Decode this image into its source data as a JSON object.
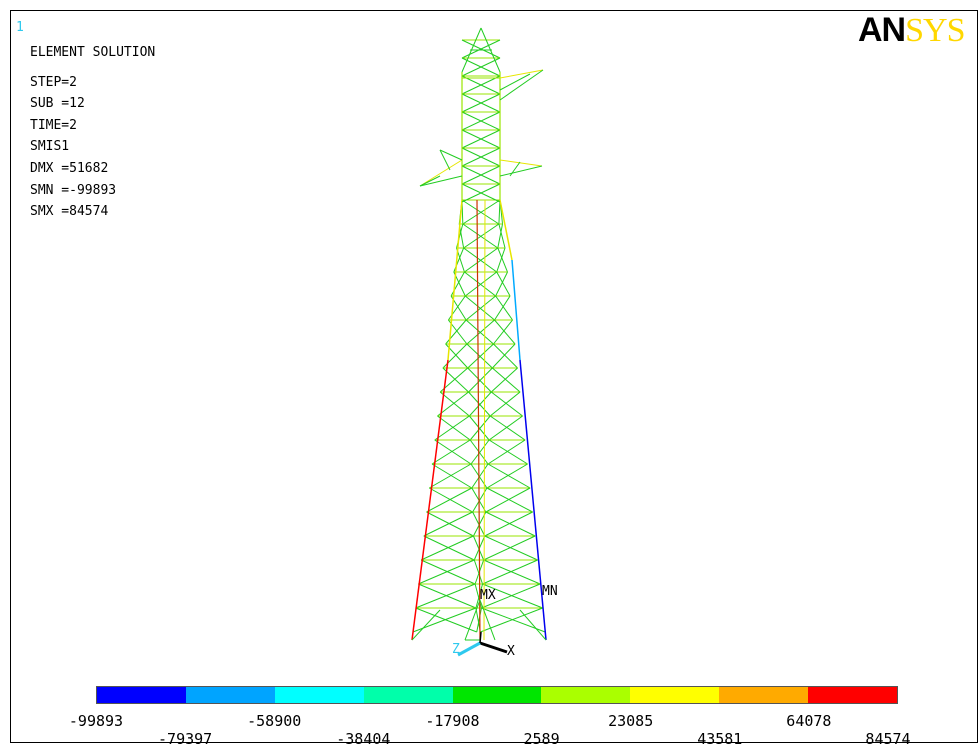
{
  "window_number": "1",
  "logo": {
    "part1": "AN",
    "part2": "SYS"
  },
  "info": {
    "title": "ELEMENT SOLUTION",
    "step": "STEP=2",
    "sub": "SUB =12",
    "time": "TIME=2",
    "item": "SMIS1",
    "dmx": "DMX =51682",
    "smn": "SMN =-99893",
    "smx": "SMX =84574"
  },
  "labels": {
    "mx": "MX",
    "mn": "MN",
    "axis_x": "X",
    "axis_z": "Z"
  },
  "legend": {
    "colors": [
      "#0000ff",
      "#00a4ff",
      "#00ffff",
      "#00ffaa",
      "#00e600",
      "#aaff00",
      "#ffff00",
      "#ffaa00",
      "#ff0000"
    ],
    "upper_ticks": [
      "-99893",
      "-58900",
      "-17908",
      "23085",
      "64078"
    ],
    "lower_ticks": [
      "-79397",
      "-38404",
      "2589",
      "43581",
      "84574"
    ]
  }
}
